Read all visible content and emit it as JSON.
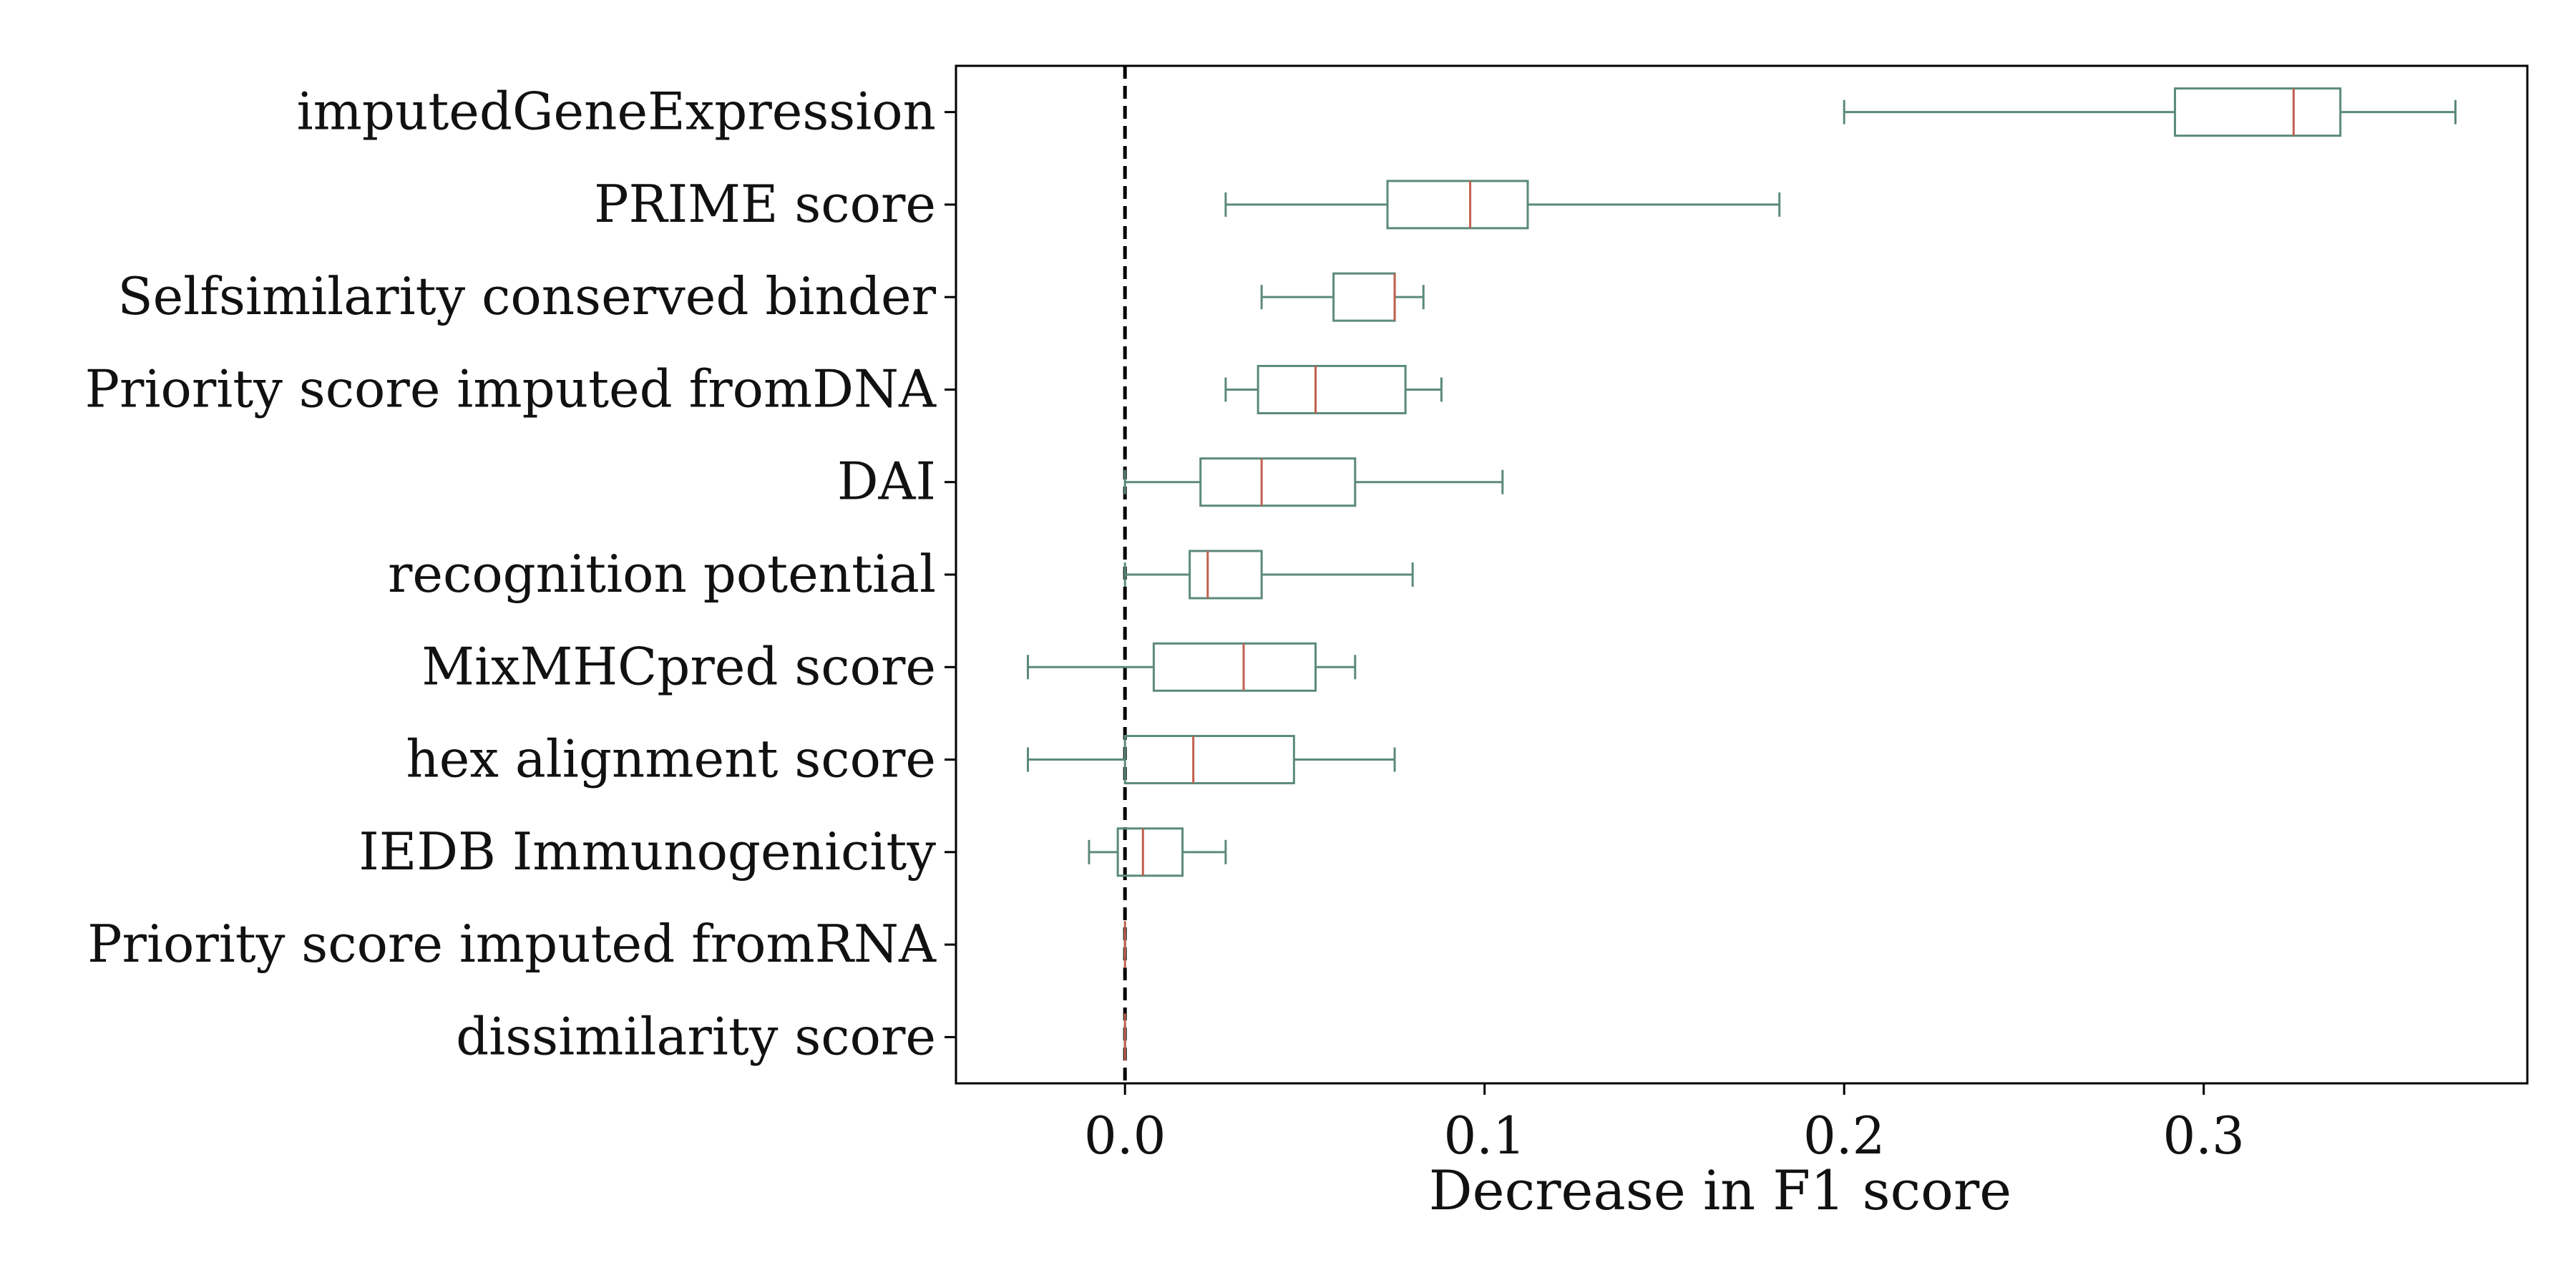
{
  "chart_data": {
    "type": "boxplot",
    "orientation": "horizontal",
    "title": "",
    "xlabel": "Decrease in F1 score",
    "ylabel": "",
    "xlim": [
      -0.047,
      0.39
    ],
    "xticks": [
      {
        "value": 0.0,
        "label": "0.0"
      },
      {
        "value": 0.1,
        "label": "0.1"
      },
      {
        "value": 0.2,
        "label": "0.2"
      },
      {
        "value": 0.3,
        "label": "0.3"
      }
    ],
    "reference_line": {
      "value": 0.0,
      "style": "dashed"
    },
    "grid": false,
    "colors": {
      "box": "#5b8a7a",
      "median": "#c0604e",
      "reference": "#000000",
      "axes": "#000000"
    },
    "categories": [
      "imputedGeneExpression",
      "PRIME score",
      "Selfsimilarity conserved binder",
      "Priority score imputed fromDNA",
      "DAI",
      "recognition potential",
      "MixMHCpred score",
      "hex alignment score",
      "IEDB Immunogenicity",
      "Priority score imputed fromRNA",
      "dissimilarity score"
    ],
    "boxes": [
      {
        "whisker_low": 0.2,
        "q1": 0.292,
        "median": 0.325,
        "q3": 0.338,
        "whisker_high": 0.37
      },
      {
        "whisker_low": 0.028,
        "q1": 0.073,
        "median": 0.096,
        "q3": 0.112,
        "whisker_high": 0.182
      },
      {
        "whisker_low": 0.038,
        "q1": 0.058,
        "median": 0.075,
        "q3": 0.075,
        "whisker_high": 0.083
      },
      {
        "whisker_low": 0.028,
        "q1": 0.037,
        "median": 0.053,
        "q3": 0.078,
        "whisker_high": 0.088
      },
      {
        "whisker_low": 0.0,
        "q1": 0.021,
        "median": 0.038,
        "q3": 0.064,
        "whisker_high": 0.105
      },
      {
        "whisker_low": 0.0,
        "q1": 0.018,
        "median": 0.023,
        "q3": 0.038,
        "whisker_high": 0.08
      },
      {
        "whisker_low": -0.027,
        "q1": 0.008,
        "median": 0.033,
        "q3": 0.053,
        "whisker_high": 0.064
      },
      {
        "whisker_low": -0.027,
        "q1": 0.0,
        "median": 0.019,
        "q3": 0.047,
        "whisker_high": 0.075
      },
      {
        "whisker_low": -0.01,
        "q1": -0.002,
        "median": 0.005,
        "q3": 0.016,
        "whisker_high": 0.028
      },
      {
        "whisker_low": 0.0,
        "q1": 0.0,
        "median": 0.0,
        "q3": 0.0,
        "whisker_high": 0.0
      },
      {
        "whisker_low": 0.0,
        "q1": 0.0,
        "median": 0.0,
        "q3": 0.0,
        "whisker_high": 0.0
      }
    ]
  }
}
